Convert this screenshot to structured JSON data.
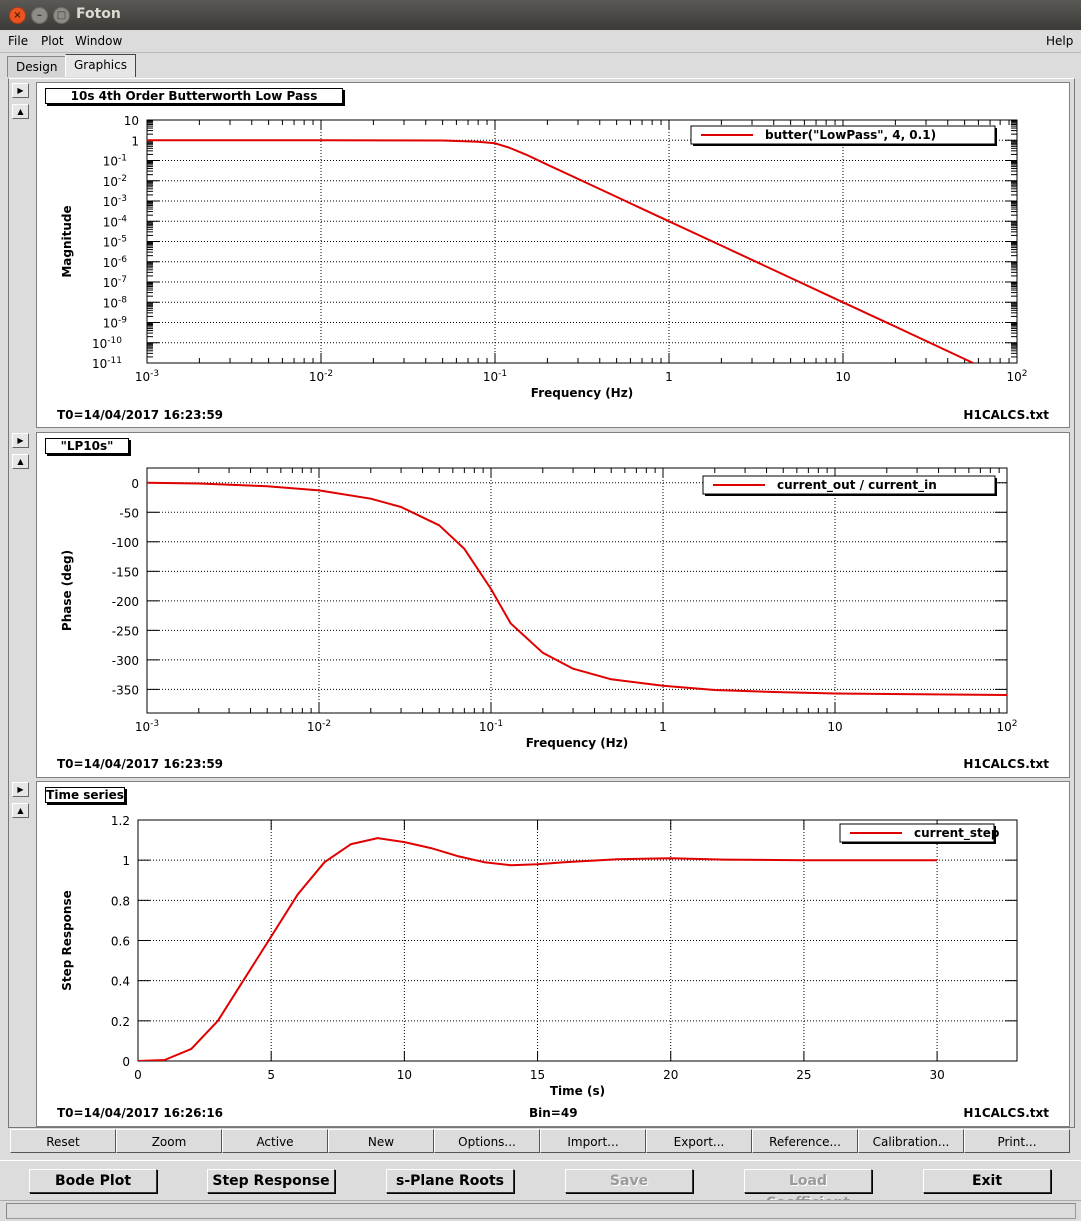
{
  "window": {
    "title": "Foton"
  },
  "menu": {
    "file": "File",
    "plot": "Plot",
    "window": "Window",
    "help": "Help"
  },
  "tabs": [
    {
      "label": "Design"
    },
    {
      "label": "Graphics"
    }
  ],
  "panel_arrows": {
    "down": "▶",
    "up": "▲"
  },
  "panels": [
    {
      "title": "10s 4th Order Butterworth Low Pass",
      "left_info": "T0=14/04/2017 16:23:59",
      "center_info": "",
      "right_info": "H1CALCS.txt",
      "chart_data": {
        "type": "line",
        "xlabel": "Frequency (Hz)",
        "ylabel": "Magnitude",
        "xscale": "log",
        "yscale": "log",
        "xlim": [
          0.001,
          100
        ],
        "ylim": [
          1e-11,
          10
        ],
        "grid": true,
        "legend_position": "top-right",
        "x_ticks": [
          {
            "value": 0.001,
            "base": "10",
            "exp": "-3"
          },
          {
            "value": 0.01,
            "base": "10",
            "exp": "-2"
          },
          {
            "value": 0.1,
            "base": "10",
            "exp": "-1"
          },
          {
            "value": 1,
            "base": "1",
            "exp": ""
          },
          {
            "value": 10,
            "base": "10",
            "exp": ""
          },
          {
            "value": 100,
            "base": "10",
            "exp": "2"
          }
        ],
        "y_ticks": [
          {
            "value": 10,
            "base": "10",
            "exp": ""
          },
          {
            "value": 1,
            "base": "1",
            "exp": ""
          },
          {
            "value": 0.1,
            "base": "10",
            "exp": "-1"
          },
          {
            "value": 0.01,
            "base": "10",
            "exp": "-2"
          },
          {
            "value": 0.001,
            "base": "10",
            "exp": "-3"
          },
          {
            "value": 0.0001,
            "base": "10",
            "exp": "-4"
          },
          {
            "value": 1e-05,
            "base": "10",
            "exp": "-5"
          },
          {
            "value": 1e-06,
            "base": "10",
            "exp": "-6"
          },
          {
            "value": 1e-07,
            "base": "10",
            "exp": "-7"
          },
          {
            "value": 1e-08,
            "base": "10",
            "exp": "-8"
          },
          {
            "value": 1e-09,
            "base": "10",
            "exp": "-9"
          },
          {
            "value": 1e-10,
            "base": "10",
            "exp": "-10"
          },
          {
            "value": 1e-11,
            "base": "10",
            "exp": "-11"
          }
        ],
        "series": [
          {
            "name": "butter(\"LowPass\", 4, 0.1)",
            "color": "#e00000",
            "points": [
              [
                0.001,
                1
              ],
              [
                0.01,
                1
              ],
              [
                0.05,
                0.97
              ],
              [
                0.08,
                0.85
              ],
              [
                0.1,
                0.707
              ],
              [
                0.12,
                0.44
              ],
              [
                0.15,
                0.2
              ],
              [
                0.2,
                0.062
              ],
              [
                0.3,
                0.0123
              ],
              [
                0.5,
                0.0016
              ],
              [
                1,
                0.0001
              ],
              [
                2,
                6.25e-06
              ],
              [
                5,
                1.6e-07
              ],
              [
                10,
                1e-08
              ],
              [
                20,
                6.25e-10
              ],
              [
                56,
                1e-11
              ]
            ]
          }
        ]
      }
    },
    {
      "title": "\"LP10s\"",
      "left_info": "T0=14/04/2017 16:23:59",
      "center_info": "",
      "right_info": "H1CALCS.txt",
      "chart_data": {
        "type": "line",
        "xlabel": "Frequency (Hz)",
        "ylabel": "Phase (deg)",
        "xscale": "log",
        "yscale": "linear",
        "xlim": [
          0.001,
          100
        ],
        "ylim": [
          -390,
          25
        ],
        "grid": true,
        "legend_position": "top-right",
        "x_ticks": [
          {
            "value": 0.001,
            "base": "10",
            "exp": "-3"
          },
          {
            "value": 0.01,
            "base": "10",
            "exp": "-2"
          },
          {
            "value": 0.1,
            "base": "10",
            "exp": "-1"
          },
          {
            "value": 1,
            "base": "1",
            "exp": ""
          },
          {
            "value": 10,
            "base": "10",
            "exp": ""
          },
          {
            "value": 100,
            "base": "10",
            "exp": "2"
          }
        ],
        "y_ticks": [
          {
            "value": 0,
            "base": "0",
            "exp": ""
          },
          {
            "value": -50,
            "base": "-50",
            "exp": ""
          },
          {
            "value": -100,
            "base": "-100",
            "exp": ""
          },
          {
            "value": -150,
            "base": "-150",
            "exp": ""
          },
          {
            "value": -200,
            "base": "-200",
            "exp": ""
          },
          {
            "value": -250,
            "base": "-250",
            "exp": ""
          },
          {
            "value": -300,
            "base": "-300",
            "exp": ""
          },
          {
            "value": -350,
            "base": "-350",
            "exp": ""
          }
        ],
        "series": [
          {
            "name": "current_out / current_in",
            "color": "#e00000",
            "points": [
              [
                0.001,
                -0.1
              ],
              [
                0.002,
                -1.2
              ],
              [
                0.005,
                -6
              ],
              [
                0.01,
                -13
              ],
              [
                0.02,
                -27
              ],
              [
                0.03,
                -41
              ],
              [
                0.05,
                -72
              ],
              [
                0.07,
                -112
              ],
              [
                0.1,
                -180
              ],
              [
                0.13,
                -238
              ],
              [
                0.2,
                -288
              ],
              [
                0.3,
                -315
              ],
              [
                0.5,
                -333
              ],
              [
                1,
                -344
              ],
              [
                2,
                -351
              ],
              [
                5,
                -355
              ],
              [
                10,
                -357
              ],
              [
                100,
                -359.5
              ]
            ]
          }
        ]
      }
    },
    {
      "title": "Time series",
      "left_info": "T0=14/04/2017 16:26:16",
      "center_info": "Bin=49",
      "right_info": "H1CALCS.txt",
      "chart_data": {
        "type": "line",
        "xlabel": "Time (s)",
        "ylabel": "Step Response",
        "xscale": "linear",
        "yscale": "linear",
        "xlim": [
          0,
          33
        ],
        "ylim": [
          0,
          1.2
        ],
        "grid": true,
        "legend_position": "top-right",
        "x_ticks": [
          {
            "value": 0,
            "base": "0",
            "exp": ""
          },
          {
            "value": 5,
            "base": "5",
            "exp": ""
          },
          {
            "value": 10,
            "base": "10",
            "exp": ""
          },
          {
            "value": 15,
            "base": "15",
            "exp": ""
          },
          {
            "value": 20,
            "base": "20",
            "exp": ""
          },
          {
            "value": 25,
            "base": "25",
            "exp": ""
          },
          {
            "value": 30,
            "base": "30",
            "exp": ""
          }
        ],
        "y_ticks": [
          {
            "value": 0,
            "base": "0",
            "exp": ""
          },
          {
            "value": 0.2,
            "base": "0.2",
            "exp": ""
          },
          {
            "value": 0.4,
            "base": "0.4",
            "exp": ""
          },
          {
            "value": 0.6,
            "base": "0.6",
            "exp": ""
          },
          {
            "value": 0.8,
            "base": "0.8",
            "exp": ""
          },
          {
            "value": 1,
            "base": "1",
            "exp": ""
          },
          {
            "value": 1.2,
            "base": "1.2",
            "exp": ""
          }
        ],
        "series": [
          {
            "name": "current_step",
            "color": "#e00000",
            "points": [
              [
                0,
                0
              ],
              [
                1,
                0.005
              ],
              [
                2,
                0.06
              ],
              [
                3,
                0.2
              ],
              [
                4,
                0.41
              ],
              [
                5,
                0.62
              ],
              [
                6,
                0.83
              ],
              [
                7,
                0.99
              ],
              [
                8,
                1.08
              ],
              [
                9,
                1.11
              ],
              [
                10,
                1.09
              ],
              [
                11,
                1.06
              ],
              [
                12,
                1.02
              ],
              [
                13,
                0.99
              ],
              [
                14,
                0.975
              ],
              [
                15,
                0.98
              ],
              [
                16,
                0.99
              ],
              [
                18,
                1.005
              ],
              [
                20,
                1.01
              ],
              [
                22,
                1.003
              ],
              [
                25,
                1.0
              ],
              [
                30,
                1.0
              ]
            ]
          }
        ]
      }
    }
  ],
  "toolbar": [
    "Reset",
    "Zoom",
    "Active",
    "New",
    "Options...",
    "Import...",
    "Export...",
    "Reference...",
    "Calibration...",
    "Print..."
  ],
  "bottom_buttons": {
    "bode": "Bode Plot",
    "step": "Step Response",
    "splane": "s-Plane Roots",
    "save": "Save",
    "load": "Load Coefficient",
    "exit": "Exit"
  }
}
